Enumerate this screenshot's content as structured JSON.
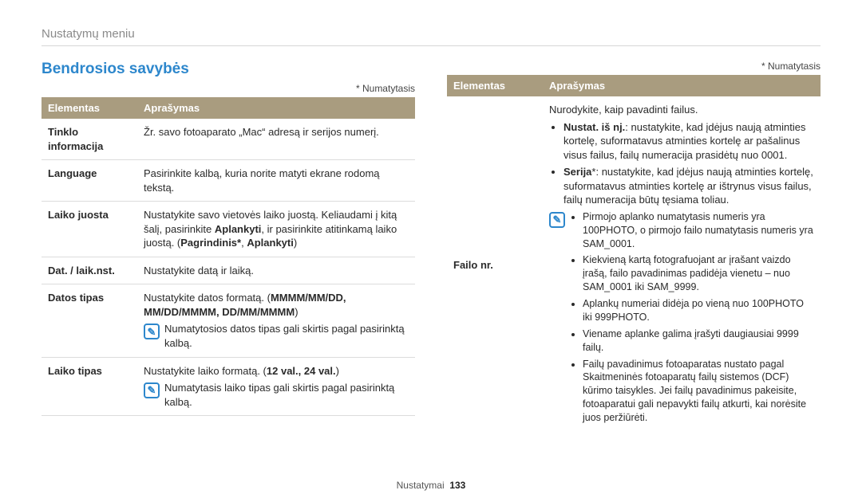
{
  "breadcrumb": "Nustatymų meniu",
  "sectionTitle": "Bendrosios savybės",
  "defaultNote": "* Numatytasis",
  "headers": {
    "el": "Elementas",
    "desc": "Aprašymas"
  },
  "left": {
    "rows": [
      {
        "label": "Tinklo informacija",
        "desc": "Žr. savo fotoaparato „Mac“ adresą ir serijos numerį."
      },
      {
        "label": "Language",
        "desc": "Pasirinkite kalbą, kuria norite matyti ekrane rodomą tekstą."
      },
      {
        "label": "Laiko juosta",
        "desc_pre": "Nustatykite savo vietovės laiko juostą. Keliaudami į kitą šalį, pasirinkite ",
        "bold1": "Aplankyti",
        "desc_mid": ", ir pasirinkite atitinkamą laiko juostą. (",
        "bold2": "Pagrindinis*",
        "desc_sep": ", ",
        "bold3": "Aplankyti",
        "desc_post": ")"
      },
      {
        "label": "Dat. / laik.nst.",
        "desc": "Nustatykite datą ir laiką."
      },
      {
        "label": "Datos tipas",
        "pre": "Nustatykite datos formatą. (",
        "bold": "MMMM/MM/DD, MM/DD/MMMM, DD/MM/MMMM",
        "post": ")",
        "note": "Numatytosios datos tipas gali skirtis pagal pasirinktą kalbą."
      },
      {
        "label": "Laiko tipas",
        "pre": "Nustatykite laiko formatą. (",
        "bold": "12 val., 24 val.",
        "post": ")",
        "note": "Numatytasis laiko tipas gali skirtis pagal pasirinktą kalbą."
      }
    ]
  },
  "right": {
    "row": {
      "label": "Failo nr.",
      "intro": "Nurodykite, kaip pavadinti failus.",
      "b1_label": "Nustat. iš nj.",
      "b1_text": ": nustatykite, kad įdėjus naują atminties kortelę, suformatavus atminties kortelę ar pašalinus visus failus, failų numeracija prasidėtų nuo 0001.",
      "b2_label": "Serija",
      "b2_text": "*: nustatykite, kad įdėjus naują atminties kortelę, suformatavus atminties kortelę ar ištrynus visus failus, failų numeracija būtų tęsiama toliau.",
      "notes": [
        "Pirmojo aplanko numatytasis numeris yra 100PHOTO, o pirmojo failo numatytasis numeris yra SAM_0001.",
        "Kiekvieną kartą fotografuojant ar įrašant vaizdo įrašą, failo pavadinimas padidėja vienetu – nuo SAM_0001 iki SAM_9999.",
        "Aplankų numeriai didėja po vieną nuo 100PHOTO iki 999PHOTO.",
        "Viename aplanke galima įrašyti daugiausiai 9999 failų.",
        "Failų pavadinimus fotoaparatas nustato pagal Skaitmeninės fotoaparatų failų sistemos (DCF) kūrimo taisykles. Jei failų pavadinimus pakeisite, fotoaparatui gali nepavykti failų atkurti, kai norėsite juos peržiūrėti."
      ]
    }
  },
  "footer": {
    "section": "Nustatymai",
    "page": "133"
  }
}
